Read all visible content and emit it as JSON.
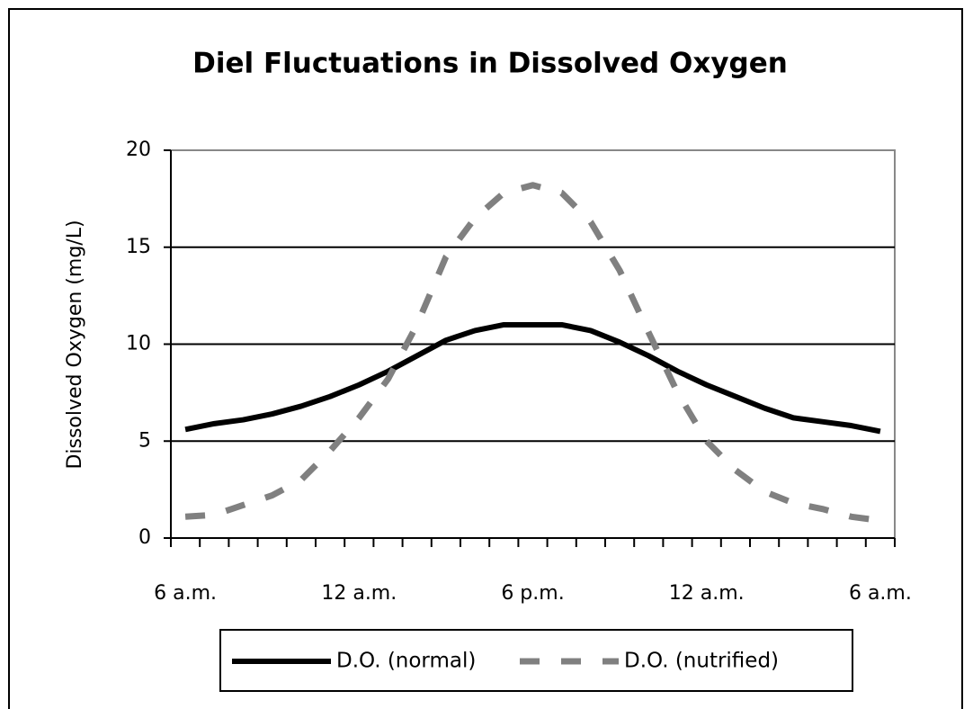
{
  "chart_data": {
    "type": "line",
    "title": "Diel Fluctuations in Dissolved Oxygen",
    "ylabel": "Dissolved Oxygen (mg/L)",
    "categories": [
      "6 a.m.",
      null,
      null,
      null,
      null,
      null,
      "12 a.m.",
      null,
      null,
      null,
      null,
      null,
      "6 p.m.",
      null,
      null,
      null,
      null,
      null,
      "12 a.m.",
      null,
      null,
      null,
      null,
      null,
      "6 a.m."
    ],
    "series": [
      {
        "name": "D.O. (normal)",
        "color": "#000000",
        "dash": "solid",
        "values": [
          5.6,
          5.9,
          6.1,
          6.4,
          6.8,
          7.3,
          7.9,
          8.6,
          9.4,
          10.2,
          10.7,
          11.0,
          11.0,
          11.0,
          10.7,
          10.1,
          9.4,
          8.6,
          7.9,
          7.3,
          6.7,
          6.2,
          6.0,
          5.8,
          5.5
        ]
      },
      {
        "name": "D.O. (nutrified)",
        "color": "#808080",
        "dash": "dashed",
        "values": [
          1.1,
          1.2,
          1.7,
          2.2,
          3.0,
          4.5,
          6.2,
          8.2,
          11.0,
          14.5,
          16.5,
          17.8,
          18.2,
          17.8,
          16.3,
          13.8,
          10.6,
          7.5,
          5.0,
          3.5,
          2.4,
          1.8,
          1.5,
          1.1,
          0.9
        ]
      }
    ],
    "ylim": [
      0,
      20
    ],
    "yticks": [
      0,
      5,
      10,
      15,
      20
    ],
    "grid": true,
    "legend": "bottom"
  }
}
